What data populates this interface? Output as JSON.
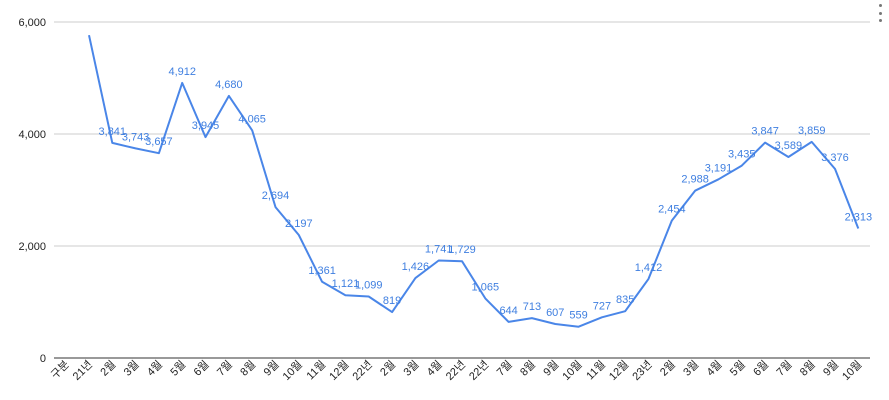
{
  "chart_data": {
    "type": "line",
    "categories": [
      "구분",
      "21년",
      "2월",
      "3월",
      "4월",
      "5월",
      "6월",
      "7월",
      "8월",
      "9월",
      "10월",
      "11월",
      "12월",
      "22년",
      "2월",
      "3월",
      "4월",
      "22년",
      "22년",
      "7월",
      "8월",
      "9월",
      "10월",
      "11월",
      "12월",
      "23년",
      "2월",
      "3월",
      "4월",
      "5월",
      "6월",
      "7월",
      "8월",
      "9월",
      "10월"
    ],
    "values": [
      null,
      5765,
      3841,
      3743,
      3657,
      4912,
      3945,
      4680,
      4065,
      2694,
      2197,
      1361,
      1121,
      1099,
      819,
      1426,
      1741,
      1729,
      1065,
      644,
      713,
      607,
      559,
      727,
      835,
      1412,
      2454,
      2988,
      3191,
      3435,
      3847,
      3589,
      3859,
      3376,
      2313
    ],
    "data_labels": [
      "",
      "",
      "3,841",
      "3,743",
      "3,657",
      "4,912",
      "3,945",
      "4,680",
      "4,065",
      "2,694",
      "2,197",
      "1,361",
      "1,121",
      "1,099",
      "819",
      "1,426",
      "1,741",
      "1,729",
      "1,065",
      "644",
      "713",
      "607",
      "559",
      "727",
      "835",
      "1,412",
      "2,454",
      "2,988",
      "3,191",
      "3,435",
      "3,847",
      "3,589",
      "3,859",
      "3,376",
      "2,313"
    ],
    "yticks": [
      0,
      2000,
      4000,
      6000
    ],
    "ytick_labels": [
      "0",
      "2,000",
      "4,000",
      "6,000"
    ],
    "ylim": [
      0,
      6000
    ],
    "grid": true,
    "line_color": "#4a86e8",
    "label_color": "#3f7fe0"
  },
  "menu": {
    "icon": "more-vert-icon"
  }
}
